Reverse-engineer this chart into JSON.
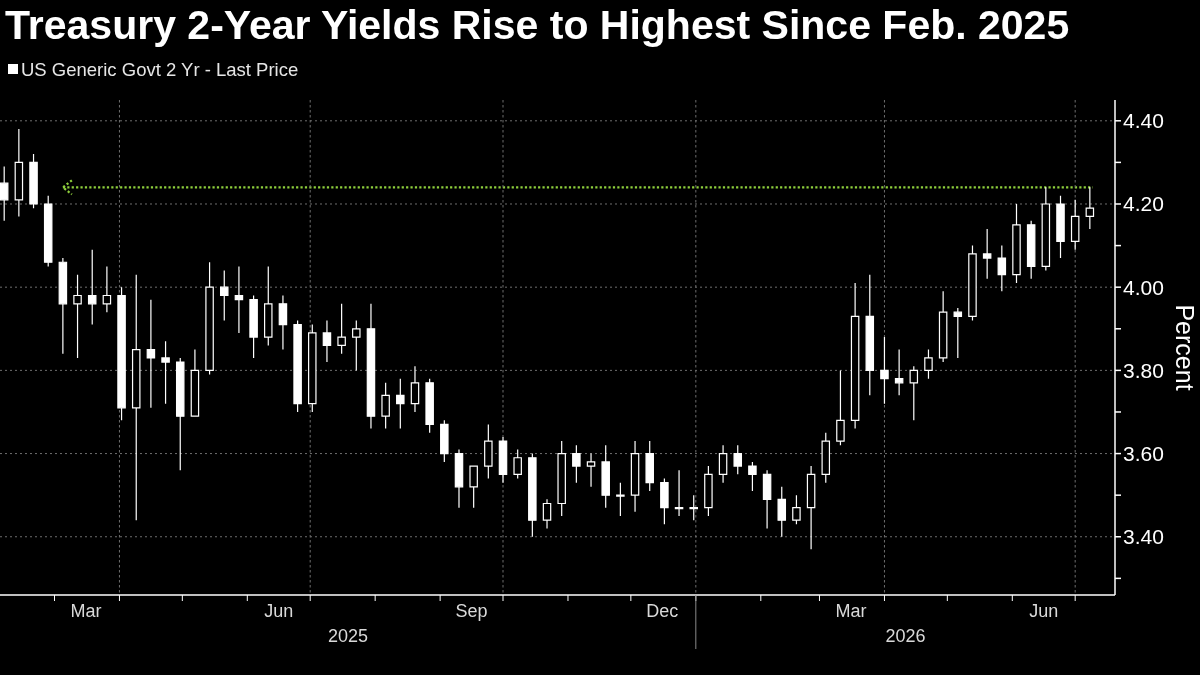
{
  "chart_data": {
    "type": "candlestick",
    "title": "Treasury 2-Year Yields Rise to Highest Since Feb. 2025",
    "ylabel": "Percent",
    "legend": "top left",
    "grid": "y",
    "xlim": [
      "2025-02-03",
      "2026-07-20"
    ],
    "ylim": [
      3.26,
      4.45
    ],
    "xticks": [
      {
        "value": "2025-03-01",
        "label": null
      },
      {
        "value": "2025-03-16",
        "label": "Mar"
      },
      {
        "value": "2025-04-01",
        "label": null
      },
      {
        "value": "2025-05-01",
        "label": null
      },
      {
        "value": "2025-06-01",
        "label": null
      },
      {
        "value": "2025-06-16",
        "label": "Jun"
      },
      {
        "value": "2025-07-01",
        "label": null
      },
      {
        "value": "2025-08-01",
        "label": null
      },
      {
        "value": "2025-09-01",
        "label": null
      },
      {
        "value": "2025-09-16",
        "label": "Sep"
      },
      {
        "value": "2025-10-01",
        "label": null
      },
      {
        "value": "2025-11-01",
        "label": null
      },
      {
        "value": "2025-12-01",
        "label": null
      },
      {
        "value": "2025-12-16",
        "label": "Dec"
      },
      {
        "value": "2026-01-01",
        "label": null
      },
      {
        "value": "2026-02-01",
        "label": null
      },
      {
        "value": "2026-03-01",
        "label": null
      },
      {
        "value": "2026-03-16",
        "label": "Mar"
      },
      {
        "value": "2026-04-01",
        "label": null
      },
      {
        "value": "2026-05-01",
        "label": null
      },
      {
        "value": "2026-06-01",
        "label": null
      },
      {
        "value": "2026-06-16",
        "label": "Jun"
      },
      {
        "value": "2026-07-01",
        "label": null
      }
    ],
    "yticks": [
      {
        "value": 3.3,
        "label": null
      },
      {
        "value": 3.4,
        "label": "3.40"
      },
      {
        "value": 3.5,
        "label": null
      },
      {
        "value": 3.6,
        "label": "3.60"
      },
      {
        "value": 3.7,
        "label": null
      },
      {
        "value": 3.8,
        "label": "3.80"
      },
      {
        "value": 3.9,
        "label": null
      },
      {
        "value": 4.0,
        "label": "4.00"
      },
      {
        "value": 4.1,
        "label": null
      },
      {
        "value": 4.2,
        "label": "4.20"
      },
      {
        "value": 4.3,
        "label": null
      },
      {
        "value": 4.4,
        "label": "4.40"
      }
    ],
    "annotations": [
      "2025",
      "2026"
    ],
    "ref_lines": [
      {
        "axis": "y",
        "value": 4.24,
        "color": "#8ecf3c",
        "line_style": "dotted"
      },
      {
        "axis": "x",
        "value": "2025-04-01",
        "color": "#6e6e6e",
        "line_style": "dotted"
      },
      {
        "axis": "x",
        "value": "2025-07-01",
        "color": "#6e6e6e",
        "line_style": "dotted"
      },
      {
        "axis": "x",
        "value": "2025-10-01",
        "color": "#6e6e6e",
        "line_style": "dotted"
      },
      {
        "axis": "x",
        "value": "2026-01-01",
        "color": "#6e6e6e",
        "line_style": "dotted"
      },
      {
        "axis": "x",
        "value": "2026-04-01",
        "color": "#6e6e6e",
        "line_style": "dotted"
      },
      {
        "axis": "x",
        "value": "2026-07-01",
        "color": "#6e6e6e",
        "line_style": "dotted"
      }
    ],
    "series": [
      {
        "name": "US Generic Govt 2 Yr - Last Price",
        "color": "#ffffff",
        "x": [
          "2025-02-05",
          "2025-02-12",
          "2025-02-19",
          "2025-02-26",
          "2025-03-05",
          "2025-03-12",
          "2025-03-19",
          "2025-03-26",
          "2025-04-02",
          "2025-04-09",
          "2025-04-16",
          "2025-04-23",
          "2025-04-30",
          "2025-05-07",
          "2025-05-14",
          "2025-05-21",
          "2025-05-28",
          "2025-06-04",
          "2025-06-11",
          "2025-06-18",
          "2025-06-25",
          "2025-07-02",
          "2025-07-09",
          "2025-07-16",
          "2025-07-23",
          "2025-07-30",
          "2025-08-06",
          "2025-08-13",
          "2025-08-20",
          "2025-08-27",
          "2025-09-03",
          "2025-09-10",
          "2025-09-17",
          "2025-09-24",
          "2025-10-01",
          "2025-10-08",
          "2025-10-15",
          "2025-10-22",
          "2025-10-29",
          "2025-11-05",
          "2025-11-12",
          "2025-11-19",
          "2025-11-26",
          "2025-12-03",
          "2025-12-10",
          "2025-12-17",
          "2025-12-24",
          "2025-12-31",
          "2026-01-07",
          "2026-01-14",
          "2026-01-21",
          "2026-01-28",
          "2026-02-04",
          "2026-02-11",
          "2026-02-18",
          "2026-02-25",
          "2026-03-04",
          "2026-03-11",
          "2026-03-18",
          "2026-03-25",
          "2026-04-01",
          "2026-04-08",
          "2026-04-15",
          "2026-04-22",
          "2026-04-29",
          "2026-05-06",
          "2026-05-13",
          "2026-05-20",
          "2026-05-27",
          "2026-06-03",
          "2026-06-10",
          "2026-06-17",
          "2026-06-24",
          "2026-07-01",
          "2026-07-08"
        ],
        "ohlc": [
          [
            4.25,
            4.29,
            4.16,
            4.21
          ],
          [
            4.21,
            4.38,
            4.17,
            4.3
          ],
          [
            4.3,
            4.32,
            4.19,
            4.2
          ],
          [
            4.2,
            4.22,
            4.05,
            4.06
          ],
          [
            4.06,
            4.07,
            3.84,
            3.96
          ],
          [
            3.96,
            4.03,
            3.83,
            3.98
          ],
          [
            3.98,
            4.09,
            3.91,
            3.96
          ],
          [
            3.96,
            4.05,
            3.94,
            3.98
          ],
          [
            3.98,
            4.0,
            3.68,
            3.71
          ],
          [
            3.71,
            4.03,
            3.44,
            3.85
          ],
          [
            3.85,
            3.97,
            3.71,
            3.83
          ],
          [
            3.83,
            3.87,
            3.72,
            3.82
          ],
          [
            3.82,
            3.83,
            3.56,
            3.69
          ],
          [
            3.69,
            3.85,
            3.69,
            3.8
          ],
          [
            3.8,
            4.06,
            3.79,
            4.0
          ],
          [
            4.0,
            4.04,
            3.92,
            3.98
          ],
          [
            3.98,
            4.05,
            3.89,
            3.97
          ],
          [
            3.97,
            3.98,
            3.83,
            3.88
          ],
          [
            3.88,
            4.05,
            3.86,
            3.96
          ],
          [
            3.96,
            3.98,
            3.85,
            3.91
          ],
          [
            3.91,
            3.92,
            3.7,
            3.72
          ],
          [
            3.72,
            3.91,
            3.7,
            3.89
          ],
          [
            3.89,
            3.92,
            3.82,
            3.86
          ],
          [
            3.86,
            3.96,
            3.84,
            3.88
          ],
          [
            3.88,
            3.92,
            3.8,
            3.9
          ],
          [
            3.9,
            3.96,
            3.66,
            3.69
          ],
          [
            3.69,
            3.77,
            3.66,
            3.74
          ],
          [
            3.74,
            3.78,
            3.66,
            3.72
          ],
          [
            3.72,
            3.81,
            3.7,
            3.77
          ],
          [
            3.77,
            3.78,
            3.65,
            3.67
          ],
          [
            3.67,
            3.68,
            3.58,
            3.6
          ],
          [
            3.6,
            3.61,
            3.47,
            3.52
          ],
          [
            3.52,
            3.57,
            3.47,
            3.57
          ],
          [
            3.57,
            3.67,
            3.54,
            3.63
          ],
          [
            3.63,
            3.64,
            3.53,
            3.55
          ],
          [
            3.55,
            3.61,
            3.54,
            3.59
          ],
          [
            3.59,
            3.6,
            3.4,
            3.44
          ],
          [
            3.44,
            3.49,
            3.42,
            3.48
          ],
          [
            3.48,
            3.63,
            3.45,
            3.6
          ],
          [
            3.6,
            3.62,
            3.53,
            3.57
          ],
          [
            3.57,
            3.6,
            3.52,
            3.58
          ],
          [
            3.58,
            3.62,
            3.47,
            3.5
          ],
          [
            3.5,
            3.53,
            3.45,
            3.5
          ],
          [
            3.5,
            3.63,
            3.46,
            3.6
          ],
          [
            3.6,
            3.63,
            3.51,
            3.53
          ],
          [
            3.53,
            3.54,
            3.43,
            3.47
          ],
          [
            3.47,
            3.56,
            3.45,
            3.47
          ],
          [
            3.47,
            3.5,
            3.44,
            3.47
          ],
          [
            3.47,
            3.57,
            3.45,
            3.55
          ],
          [
            3.55,
            3.62,
            3.53,
            3.6
          ],
          [
            3.6,
            3.62,
            3.55,
            3.57
          ],
          [
            3.57,
            3.58,
            3.51,
            3.55
          ],
          [
            3.55,
            3.56,
            3.42,
            3.49
          ],
          [
            3.49,
            3.52,
            3.4,
            3.44
          ],
          [
            3.44,
            3.5,
            3.43,
            3.47
          ],
          [
            3.47,
            3.57,
            3.37,
            3.55
          ],
          [
            3.55,
            3.65,
            3.53,
            3.63
          ],
          [
            3.63,
            3.8,
            3.62,
            3.68
          ],
          [
            3.68,
            4.01,
            3.66,
            3.93
          ],
          [
            3.93,
            4.03,
            3.74,
            3.8
          ],
          [
            3.8,
            3.88,
            3.72,
            3.78
          ],
          [
            3.78,
            3.85,
            3.74,
            3.77
          ],
          [
            3.77,
            3.81,
            3.68,
            3.8
          ],
          [
            3.8,
            3.85,
            3.78,
            3.83
          ],
          [
            3.83,
            3.99,
            3.82,
            3.94
          ],
          [
            3.94,
            3.95,
            3.83,
            3.93
          ],
          [
            3.93,
            4.1,
            3.92,
            4.08
          ],
          [
            4.08,
            4.14,
            4.02,
            4.07
          ],
          [
            4.07,
            4.1,
            3.99,
            4.03
          ],
          [
            4.03,
            4.2,
            4.01,
            4.15
          ],
          [
            4.15,
            4.16,
            4.02,
            4.05
          ],
          [
            4.05,
            4.24,
            4.04,
            4.2
          ],
          [
            4.2,
            4.22,
            4.07,
            4.11
          ],
          [
            4.11,
            4.21,
            4.09,
            4.17
          ],
          [
            4.17,
            4.24,
            4.14,
            4.19
          ]
        ]
      }
    ]
  }
}
